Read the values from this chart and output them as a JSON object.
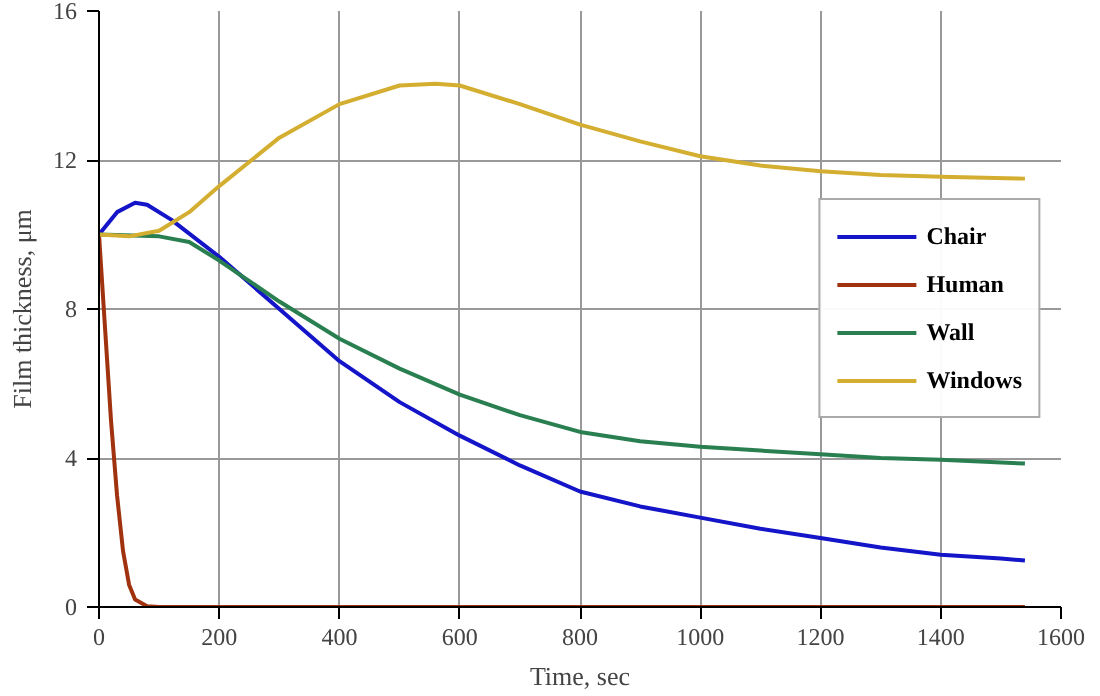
{
  "chart_data": {
    "type": "line",
    "xlabel": "Time, sec",
    "ylabel": "Film thickness, μm",
    "xlim": [
      0,
      1600
    ],
    "ylim": [
      0,
      16
    ],
    "xticks": [
      0,
      200,
      400,
      600,
      800,
      1000,
      1200,
      1400,
      1600
    ],
    "yticks": [
      0,
      4,
      8,
      12,
      16
    ],
    "grid": true,
    "legend": "right",
    "line_style": "solid",
    "series": [
      {
        "name": "Chair",
        "color": "#1414c8",
        "x": [
          0,
          30,
          60,
          80,
          120,
          200,
          300,
          400,
          500,
          600,
          700,
          800,
          900,
          1000,
          1100,
          1200,
          1300,
          1400,
          1500,
          1540
        ],
        "values": [
          10,
          10.6,
          10.85,
          10.8,
          10.4,
          9.4,
          8.0,
          6.6,
          5.5,
          4.6,
          3.8,
          3.1,
          2.7,
          2.4,
          2.1,
          1.85,
          1.6,
          1.4,
          1.3,
          1.25
        ]
      },
      {
        "name": "Human",
        "color": "#a0320f",
        "x": [
          0,
          10,
          20,
          30,
          40,
          50,
          60,
          80,
          100,
          1540
        ],
        "values": [
          10,
          7.5,
          5,
          3,
          1.5,
          0.6,
          0.2,
          0.02,
          0,
          0
        ]
      },
      {
        "name": "Wall",
        "color": "#2a7f50",
        "x": [
          0,
          100,
          150,
          200,
          300,
          400,
          500,
          600,
          700,
          800,
          900,
          1000,
          1100,
          1200,
          1300,
          1400,
          1540
        ],
        "values": [
          10,
          9.95,
          9.8,
          9.3,
          8.2,
          7.2,
          6.4,
          5.7,
          5.15,
          4.7,
          4.45,
          4.3,
          4.2,
          4.1,
          4.0,
          3.95,
          3.85
        ]
      },
      {
        "name": "Windows",
        "color": "#d4ae30",
        "x": [
          0,
          50,
          100,
          150,
          200,
          300,
          400,
          500,
          560,
          600,
          700,
          800,
          900,
          1000,
          1100,
          1200,
          1300,
          1400,
          1540
        ],
        "values": [
          10,
          9.95,
          10.1,
          10.6,
          11.3,
          12.6,
          13.5,
          14.0,
          14.05,
          14.0,
          13.5,
          12.95,
          12.5,
          12.1,
          11.85,
          11.7,
          11.6,
          11.55,
          11.5
        ]
      }
    ]
  }
}
